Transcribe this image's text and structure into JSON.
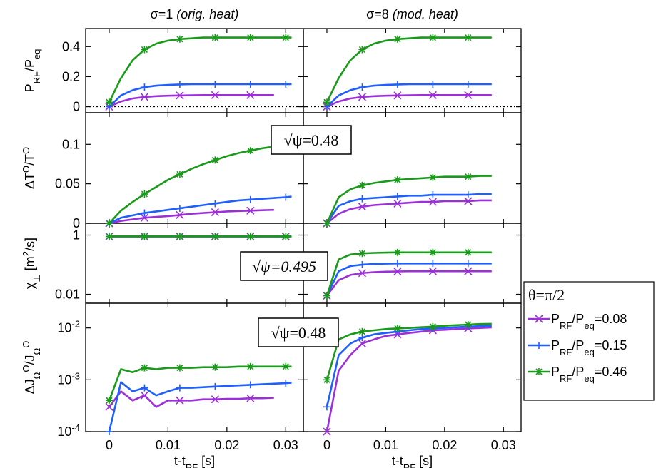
{
  "columns": [
    {
      "prefix": "σ=1 ",
      "italic": "(orig. heat)"
    },
    {
      "prefix": "σ=8 ",
      "italic": "(mod. heat)"
    }
  ],
  "xaxis": {
    "label_main": "t-t",
    "label_sub": "RF",
    "label_unit": " [s]",
    "ticks": [
      "0",
      "0.01",
      "0.02",
      "0.03"
    ],
    "range": [
      -0.004,
      0.033
    ]
  },
  "rows": [
    {
      "ylabel_parts": [
        [
          "P",
          "",
          ""
        ],
        [
          "RF",
          "sub",
          ""
        ],
        [
          "/P",
          "",
          ""
        ],
        [
          "eq",
          "sub",
          ""
        ]
      ],
      "ticks": [
        "0",
        "0.2",
        "0.4"
      ],
      "ylim": [
        -0.04,
        0.52
      ],
      "scale": "linear"
    },
    {
      "ylabel_parts": [
        [
          "ΔT",
          "",
          ""
        ],
        [
          "O",
          "sup",
          ""
        ],
        [
          "/T",
          "",
          ""
        ],
        [
          "O",
          "sup",
          ""
        ]
      ],
      "ticks": [
        "0",
        "0.05",
        "0.1"
      ],
      "ylim": [
        0,
        0.14
      ],
      "scale": "linear"
    },
    {
      "ylabel_parts": [
        [
          "χ",
          "",
          ""
        ],
        [
          "⊥",
          "sub",
          ""
        ],
        [
          " [m",
          "",
          ""
        ],
        [
          "2",
          "sup",
          ""
        ],
        [
          "/s]",
          "",
          ""
        ]
      ],
      "ticks": [
        "0.01",
        "1"
      ],
      "ylim": [
        0.005,
        2.5
      ],
      "scale": "log"
    },
    {
      "ylabel_parts": [
        [
          "ΔJ",
          "",
          ""
        ],
        [
          "Ω",
          "sub",
          ""
        ],
        [
          "O",
          "sup",
          ""
        ],
        [
          "/J",
          "",
          ""
        ],
        [
          "Ω",
          "sub",
          ""
        ],
        [
          "O",
          "sup",
          ""
        ]
      ],
      "ticks": [
        [
          "10",
          "-4"
        ],
        [
          "10",
          "-3"
        ],
        [
          "10",
          "-2"
        ]
      ],
      "ylim": [
        0.0001,
        0.03
      ],
      "scale": "log"
    }
  ],
  "annotations": [
    {
      "text": "√ψ=0.48",
      "italic": false,
      "row": 1
    },
    {
      "text": "√ψ=0.495",
      "italic": true,
      "row": 2
    },
    {
      "text": "√ψ=0.48",
      "italic": false,
      "row": 3
    }
  ],
  "legend": {
    "title": "θ=π/2",
    "entries": [
      {
        "parts": [
          [
            "P",
            ""
          ],
          [
            "RF",
            "sub"
          ],
          [
            "/P",
            ""
          ],
          [
            "eq",
            "sub"
          ],
          [
            "=0.08",
            ""
          ]
        ],
        "color": "#9b30d9",
        "marker": "x"
      },
      {
        "parts": [
          [
            "P",
            ""
          ],
          [
            "RF",
            "sub"
          ],
          [
            "/P",
            ""
          ],
          [
            "eq",
            "sub"
          ],
          [
            "=0.15",
            ""
          ]
        ],
        "color": "#1f5fff",
        "marker": "+"
      },
      {
        "parts": [
          [
            "P",
            ""
          ],
          [
            "RF",
            "sub"
          ],
          [
            "/P",
            ""
          ],
          [
            "eq",
            "sub"
          ],
          [
            "=0.46",
            ""
          ]
        ],
        "color": "#1a9a1a",
        "marker": "*"
      }
    ]
  },
  "chart_data": {
    "type": "line",
    "x": [
      0,
      0.002,
      0.004,
      0.006,
      0.008,
      0.01,
      0.012,
      0.014,
      0.016,
      0.018,
      0.02,
      0.022,
      0.024,
      0.026,
      0.028,
      0.03,
      0.031
    ],
    "panels": [
      {
        "row": 0,
        "col": 0,
        "series": [
          {
            "name": "PRF/Peq=0.08",
            "values": [
              0.0,
              0.035,
              0.055,
              0.065,
              0.07,
              0.073,
              0.075,
              0.076,
              0.077,
              0.077,
              0.077,
              0.077,
              0.077,
              0.077,
              0.077,
              null,
              null
            ]
          },
          {
            "name": "PRF/Peq=0.15",
            "values": [
              0.0,
              0.075,
              0.11,
              0.13,
              0.14,
              0.145,
              0.148,
              0.15,
              0.15,
              0.15,
              0.15,
              0.15,
              0.15,
              0.15,
              0.15,
              0.15,
              0.15
            ]
          },
          {
            "name": "PRF/Peq=0.46",
            "values": [
              0.03,
              0.19,
              0.31,
              0.38,
              0.42,
              0.44,
              0.45,
              0.455,
              0.46,
              0.46,
              0.46,
              0.46,
              0.46,
              0.46,
              0.46,
              0.46,
              0.46
            ]
          }
        ]
      },
      {
        "row": 0,
        "col": 1,
        "series": [
          {
            "name": "PRF/Peq=0.08",
            "values": [
              0.0,
              0.035,
              0.055,
              0.065,
              0.07,
              0.073,
              0.075,
              0.076,
              0.077,
              0.077,
              0.077,
              0.077,
              0.077,
              0.077,
              0.077,
              null,
              null
            ]
          },
          {
            "name": "PRF/Peq=0.15",
            "values": [
              0.0,
              0.075,
              0.11,
              0.13,
              0.14,
              0.145,
              0.148,
              0.15,
              0.15,
              0.15,
              0.15,
              0.15,
              0.15,
              0.15,
              0.15,
              null,
              null
            ]
          },
          {
            "name": "PRF/Peq=0.46",
            "values": [
              0.03,
              0.19,
              0.31,
              0.38,
              0.42,
              0.44,
              0.45,
              0.455,
              0.46,
              0.46,
              0.46,
              0.46,
              0.46,
              0.46,
              0.46,
              null,
              null
            ]
          }
        ]
      },
      {
        "row": 1,
        "col": 0,
        "series": [
          {
            "name": "PRF/Peq=0.08",
            "values": [
              0.0,
              0.003,
              0.005,
              0.007,
              0.008,
              0.009,
              0.0105,
              0.012,
              0.013,
              0.014,
              0.015,
              0.0155,
              0.016,
              0.0165,
              0.017,
              null,
              null
            ]
          },
          {
            "name": "PRF/Peq=0.15",
            "values": [
              0.0,
              0.007,
              0.01,
              0.013,
              0.015,
              0.017,
              0.019,
              0.021,
              0.023,
              0.025,
              0.027,
              0.029,
              0.03,
              0.031,
              0.032,
              0.033,
              0.034
            ]
          },
          {
            "name": "PRF/Peq=0.46",
            "values": [
              0.0,
              0.016,
              0.027,
              0.037,
              0.046,
              0.055,
              0.062,
              0.069,
              0.075,
              0.08,
              0.085,
              0.089,
              0.092,
              0.095,
              0.097,
              0.099,
              0.1
            ]
          }
        ]
      },
      {
        "row": 1,
        "col": 1,
        "series": [
          {
            "name": "PRF/Peq=0.08",
            "values": [
              0.0,
              0.012,
              0.018,
              0.021,
              0.023,
              0.024,
              0.025,
              0.026,
              0.027,
              0.027,
              0.028,
              0.028,
              0.028,
              0.029,
              0.029,
              null,
              null
            ]
          },
          {
            "name": "PRF/Peq=0.15",
            "values": [
              0.0,
              0.022,
              0.028,
              0.031,
              0.032,
              0.033,
              0.034,
              0.035,
              0.035,
              0.036,
              0.036,
              0.036,
              0.036,
              0.037,
              0.037,
              null,
              null
            ]
          },
          {
            "name": "PRF/Peq=0.46",
            "values": [
              0.0,
              0.033,
              0.043,
              0.048,
              0.051,
              0.053,
              0.055,
              0.056,
              0.057,
              0.058,
              0.059,
              0.059,
              0.059,
              0.06,
              0.06,
              null,
              null
            ]
          }
        ]
      },
      {
        "row": 2,
        "col": 0,
        "series": [
          {
            "name": "PRF/Peq=0.08",
            "values": [
              0.9,
              0.9,
              0.9,
              0.9,
              0.9,
              0.9,
              0.9,
              0.9,
              0.9,
              0.9,
              0.9,
              0.9,
              0.9,
              0.9,
              0.9,
              0.9,
              0.9
            ]
          },
          {
            "name": "PRF/Peq=0.15",
            "values": [
              0.9,
              0.9,
              0.9,
              0.9,
              0.9,
              0.9,
              0.9,
              0.9,
              0.9,
              0.9,
              0.9,
              0.9,
              0.9,
              0.9,
              0.9,
              0.9,
              0.9
            ]
          },
          {
            "name": "PRF/Peq=0.46",
            "values": [
              0.9,
              0.9,
              0.9,
              0.9,
              0.9,
              0.9,
              0.9,
              0.9,
              0.9,
              0.9,
              0.9,
              0.9,
              0.9,
              0.9,
              0.9,
              0.9,
              0.9
            ]
          }
        ]
      },
      {
        "row": 2,
        "col": 1,
        "series": [
          {
            "name": "PRF/Peq=0.08",
            "values": [
              0.009,
              0.03,
              0.045,
              0.052,
              0.056,
              0.058,
              0.059,
              0.06,
              0.06,
              0.06,
              0.06,
              0.06,
              0.06,
              0.06,
              0.06,
              null,
              null
            ]
          },
          {
            "name": "PRF/Peq=0.15",
            "values": [
              0.009,
              0.06,
              0.09,
              0.1,
              0.105,
              0.108,
              0.11,
              0.11,
              0.11,
              0.11,
              0.11,
              0.11,
              0.11,
              0.11,
              0.11,
              null,
              null
            ]
          },
          {
            "name": "PRF/Peq=0.46",
            "values": [
              0.009,
              0.15,
              0.22,
              0.24,
              0.25,
              0.255,
              0.26,
              0.26,
              0.26,
              0.26,
              0.26,
              0.26,
              0.26,
              0.26,
              0.26,
              null,
              null
            ]
          }
        ]
      },
      {
        "row": 3,
        "col": 0,
        "series": [
          {
            "name": "PRF/Peq=0.08",
            "values": [
              0.0003,
              0.0006,
              0.0004,
              0.0005,
              0.0003,
              0.0004,
              0.0004,
              0.0004,
              0.00042,
              0.00042,
              0.00043,
              0.00043,
              0.00044,
              0.00044,
              0.00045,
              null,
              null
            ]
          },
          {
            "name": "PRF/Peq=0.15",
            "values": [
              0.0001,
              0.0009,
              0.0006,
              0.0007,
              0.0005,
              0.0006,
              0.0007,
              0.0007,
              0.00072,
              0.00074,
              0.00076,
              0.00078,
              0.0008,
              0.00082,
              0.00084,
              0.00086,
              0.00088
            ]
          },
          {
            "name": "PRF/Peq=0.46",
            "values": [
              0.0004,
              0.0016,
              0.0014,
              0.0017,
              0.0016,
              0.0017,
              0.0017,
              0.0017,
              0.00175,
              0.00175,
              0.00175,
              0.0018,
              0.0018,
              0.0018,
              0.0018,
              0.0018,
              0.0018
            ]
          }
        ]
      },
      {
        "row": 3,
        "col": 1,
        "series": [
          {
            "name": "PRF/Peq=0.08",
            "values": [
              0.0001,
              0.0015,
              0.003,
              0.005,
              0.006,
              0.007,
              0.0075,
              0.008,
              0.0085,
              0.009,
              0.0092,
              0.0095,
              0.0098,
              0.01,
              0.0102,
              null,
              null
            ]
          },
          {
            "name": "PRF/Peq=0.15",
            "values": [
              0.0003,
              0.003,
              0.005,
              0.0065,
              0.0075,
              0.008,
              0.0085,
              0.009,
              0.0095,
              0.0098,
              0.01,
              0.0103,
              0.0106,
              0.0108,
              0.011,
              null,
              null
            ]
          },
          {
            "name": "PRF/Peq=0.46",
            "values": [
              0.001,
              0.006,
              0.0075,
              0.0085,
              0.009,
              0.0095,
              0.0098,
              0.01,
              0.0103,
              0.0106,
              0.011,
              0.0113,
              0.0116,
              0.0119,
              0.012,
              null,
              null
            ]
          }
        ]
      }
    ]
  }
}
